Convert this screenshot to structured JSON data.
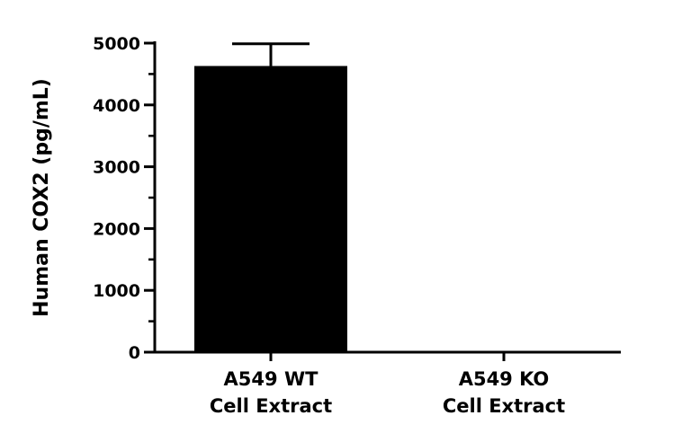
{
  "chart_data": {
    "type": "bar",
    "title": "",
    "xlabel": "",
    "ylabel": "Human COX2 (pg/mL)",
    "ylim": [
      0,
      5000
    ],
    "yticks": [
      0,
      1000,
      2000,
      3000,
      4000,
      5000
    ],
    "categories": [
      {
        "line1": "A549 WT",
        "line2": "Cell Extract"
      },
      {
        "line1": "A549 KO",
        "line2": "Cell Extract"
      }
    ],
    "values": [
      4630,
      0
    ],
    "error_upper": [
      360,
      0
    ],
    "bar_color": "#000000",
    "grid": false
  }
}
